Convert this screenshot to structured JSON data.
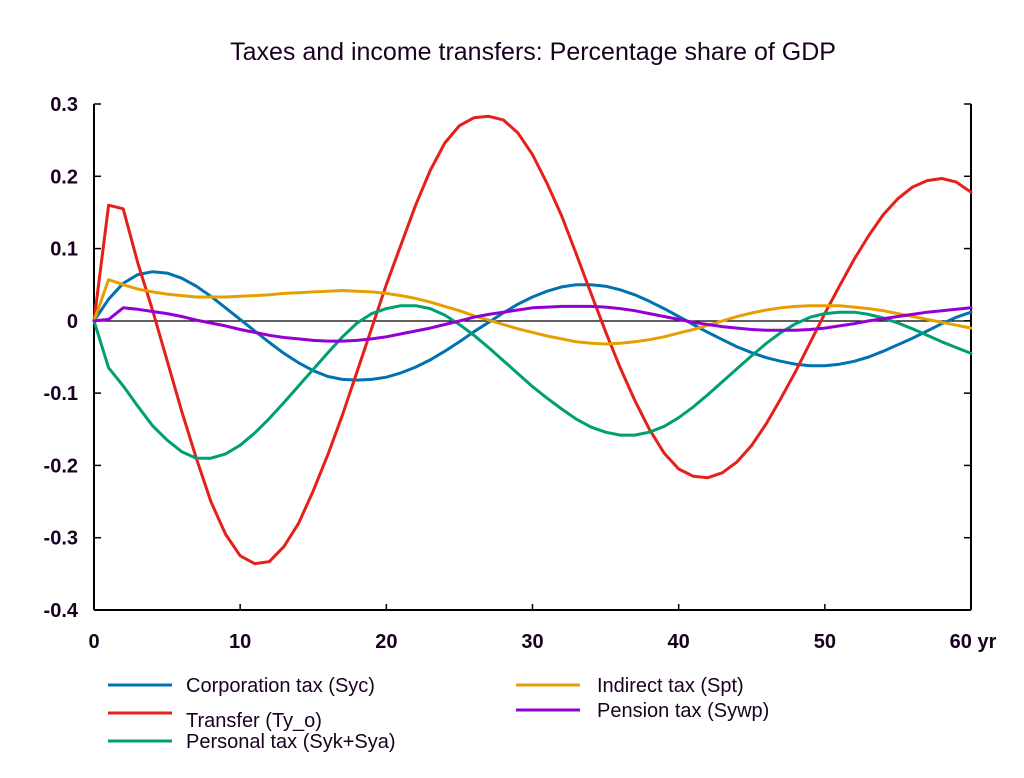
{
  "chart_data": {
    "type": "line",
    "title": "Taxes and income transfers: Percentage share of GDP",
    "xlabel": "yr",
    "ylabel": "",
    "xlim": [
      0,
      60
    ],
    "ylim": [
      -0.4,
      0.3
    ],
    "xticks": [
      0,
      10,
      20,
      30,
      40,
      50,
      60
    ],
    "xtick_labels": [
      "0",
      "10",
      "20",
      "30",
      "40",
      "50",
      "60 yr"
    ],
    "yticks": [
      0.3,
      0.2,
      0.1,
      0,
      -0.1,
      -0.2,
      -0.3,
      -0.4
    ],
    "ytick_labels": [
      "0.3",
      "0.2",
      "0.1",
      "0",
      "-0.1",
      "-0.2",
      "-0.3",
      "-0.4"
    ],
    "grid": false,
    "zero_line": true,
    "legend_position": "bottom",
    "series": [
      {
        "name": "Corporation tax (Syc)",
        "color": "#0072b2",
        "x": [
          0,
          1,
          2,
          3,
          4,
          5,
          6,
          7,
          8,
          9,
          10,
          11,
          12,
          13,
          14,
          15,
          16,
          17,
          18,
          19,
          20,
          21,
          22,
          23,
          24,
          25,
          26,
          27,
          28,
          29,
          30,
          31,
          32,
          33,
          34,
          35,
          36,
          37,
          38,
          39,
          40,
          41,
          42,
          43,
          44,
          45,
          46,
          47,
          48,
          49,
          50,
          51,
          52,
          53,
          54,
          55,
          56,
          57,
          58,
          59,
          60
        ],
        "y": [
          0,
          0.03,
          0.052,
          0.064,
          0.068,
          0.066,
          0.059,
          0.048,
          0.034,
          0.018,
          0.002,
          -0.014,
          -0.03,
          -0.045,
          -0.058,
          -0.069,
          -0.077,
          -0.081,
          -0.082,
          -0.081,
          -0.078,
          -0.072,
          -0.064,
          -0.054,
          -0.042,
          -0.029,
          -0.015,
          -0.002,
          0.011,
          0.023,
          0.033,
          0.041,
          0.047,
          0.05,
          0.05,
          0.048,
          0.043,
          0.036,
          0.027,
          0.017,
          0.006,
          -0.005,
          -0.016,
          -0.026,
          -0.036,
          -0.044,
          -0.051,
          -0.056,
          -0.06,
          -0.062,
          -0.062,
          -0.06,
          -0.056,
          -0.05,
          -0.042,
          -0.033,
          -0.024,
          -0.014,
          -0.004,
          0.005,
          0.012
        ]
      },
      {
        "name": "Transfer (Ty_o)",
        "color": "#e52019",
        "x": [
          0,
          1,
          2,
          3,
          4,
          5,
          6,
          7,
          8,
          9,
          10,
          11,
          12,
          13,
          14,
          15,
          16,
          17,
          18,
          19,
          20,
          21,
          22,
          23,
          24,
          25,
          26,
          27,
          28,
          29,
          30,
          31,
          32,
          33,
          34,
          35,
          36,
          37,
          38,
          39,
          40,
          41,
          42,
          43,
          44,
          45,
          46,
          47,
          48,
          49,
          50,
          51,
          52,
          53,
          54,
          55,
          56,
          57,
          58,
          59,
          60
        ],
        "y": [
          0,
          0.16,
          0.155,
          0.08,
          0.015,
          -0.055,
          -0.125,
          -0.19,
          -0.25,
          -0.295,
          -0.325,
          -0.336,
          -0.333,
          -0.312,
          -0.28,
          -0.235,
          -0.185,
          -0.13,
          -0.07,
          -0.01,
          0.05,
          0.105,
          0.16,
          0.208,
          0.246,
          0.27,
          0.281,
          0.283,
          0.278,
          0.26,
          0.23,
          0.19,
          0.145,
          0.092,
          0.038,
          -0.015,
          -0.065,
          -0.11,
          -0.15,
          -0.183,
          -0.205,
          -0.215,
          -0.217,
          -0.21,
          -0.195,
          -0.172,
          -0.142,
          -0.107,
          -0.07,
          -0.03,
          0.01,
          0.048,
          0.085,
          0.118,
          0.147,
          0.169,
          0.185,
          0.194,
          0.197,
          0.192,
          0.178
        ]
      },
      {
        "name": "Personal tax (Syk+Sya)",
        "color": "#009e73",
        "x": [
          0,
          1,
          2,
          3,
          4,
          5,
          6,
          7,
          8,
          9,
          10,
          11,
          12,
          13,
          14,
          15,
          16,
          17,
          18,
          19,
          20,
          21,
          22,
          23,
          24,
          25,
          26,
          27,
          28,
          29,
          30,
          31,
          32,
          33,
          34,
          35,
          36,
          37,
          38,
          39,
          40,
          41,
          42,
          43,
          44,
          45,
          46,
          47,
          48,
          49,
          50,
          51,
          52,
          53,
          54,
          55,
          56,
          57,
          58,
          59,
          60
        ],
        "y": [
          0,
          -0.065,
          -0.09,
          -0.118,
          -0.145,
          -0.165,
          -0.181,
          -0.19,
          -0.19,
          -0.184,
          -0.172,
          -0.155,
          -0.135,
          -0.113,
          -0.09,
          -0.067,
          -0.044,
          -0.022,
          -0.003,
          0.01,
          0.017,
          0.021,
          0.021,
          0.017,
          0.008,
          -0.005,
          -0.02,
          -0.037,
          -0.055,
          -0.073,
          -0.091,
          -0.107,
          -0.122,
          -0.136,
          -0.147,
          -0.154,
          -0.158,
          -0.158,
          -0.154,
          -0.146,
          -0.134,
          -0.119,
          -0.102,
          -0.084,
          -0.066,
          -0.048,
          -0.031,
          -0.016,
          -0.004,
          0.005,
          0.01,
          0.012,
          0.012,
          0.009,
          0.004,
          -0.003,
          -0.011,
          -0.02,
          -0.029,
          -0.037,
          -0.045
        ]
      },
      {
        "name": "Indirect tax (Spt)",
        "color": "#e69f00",
        "x": [
          0,
          1,
          2,
          3,
          4,
          5,
          6,
          7,
          8,
          9,
          10,
          11,
          12,
          13,
          14,
          15,
          16,
          17,
          18,
          19,
          20,
          21,
          22,
          23,
          24,
          25,
          26,
          27,
          28,
          29,
          30,
          31,
          32,
          33,
          34,
          35,
          36,
          37,
          38,
          39,
          40,
          41,
          42,
          43,
          44,
          45,
          46,
          47,
          48,
          49,
          50,
          51,
          52,
          53,
          54,
          55,
          56,
          57,
          58,
          59,
          60
        ],
        "y": [
          0,
          0.057,
          0.05,
          0.044,
          0.04,
          0.037,
          0.035,
          0.033,
          0.033,
          0.033,
          0.034,
          0.035,
          0.036,
          0.038,
          0.039,
          0.04,
          0.041,
          0.042,
          0.041,
          0.04,
          0.038,
          0.035,
          0.031,
          0.026,
          0.02,
          0.014,
          0.007,
          0.001,
          -0.005,
          -0.011,
          -0.016,
          -0.021,
          -0.025,
          -0.029,
          -0.031,
          -0.032,
          -0.031,
          -0.029,
          -0.026,
          -0.022,
          -0.017,
          -0.012,
          -0.006,
          0.0,
          0.006,
          0.011,
          0.015,
          0.018,
          0.02,
          0.021,
          0.021,
          0.021,
          0.019,
          0.017,
          0.014,
          0.01,
          0.006,
          0.002,
          -0.002,
          -0.006,
          -0.01
        ]
      },
      {
        "name": "Pension tax (Sywp)",
        "color": "#9400d3",
        "x": [
          0,
          1,
          2,
          3,
          4,
          5,
          6,
          7,
          8,
          9,
          10,
          11,
          12,
          13,
          14,
          15,
          16,
          17,
          18,
          19,
          20,
          21,
          22,
          23,
          24,
          25,
          26,
          27,
          28,
          29,
          30,
          31,
          32,
          33,
          34,
          35,
          36,
          37,
          38,
          39,
          40,
          41,
          42,
          43,
          44,
          45,
          46,
          47,
          48,
          49,
          50,
          51,
          52,
          53,
          54,
          55,
          56,
          57,
          58,
          59,
          60
        ],
        "y": [
          0,
          0.002,
          0.018,
          0.016,
          0.013,
          0.01,
          0.006,
          0.001,
          -0.003,
          -0.007,
          -0.012,
          -0.016,
          -0.02,
          -0.023,
          -0.025,
          -0.027,
          -0.028,
          -0.028,
          -0.027,
          -0.025,
          -0.022,
          -0.018,
          -0.014,
          -0.01,
          -0.005,
          0.0,
          0.005,
          0.009,
          0.012,
          0.015,
          0.018,
          0.019,
          0.02,
          0.02,
          0.02,
          0.019,
          0.017,
          0.014,
          0.01,
          0.006,
          0.002,
          -0.002,
          -0.005,
          -0.008,
          -0.01,
          -0.012,
          -0.013,
          -0.013,
          -0.013,
          -0.012,
          -0.01,
          -0.007,
          -0.004,
          0.0,
          0.003,
          0.006,
          0.009,
          0.012,
          0.014,
          0.016,
          0.018
        ]
      }
    ],
    "legend": [
      {
        "label": "Corporation tax (Syc)",
        "color": "#0072b2"
      },
      {
        "label": "Transfer (Ty_o)",
        "color": "#e52019"
      },
      {
        "label": "Personal tax (Syk+Sya)",
        "color": "#009e73"
      },
      {
        "label": "Indirect tax (Spt)",
        "color": "#e69f00"
      },
      {
        "label": "Pension tax (Sywp)",
        "color": "#9400d3"
      }
    ]
  }
}
